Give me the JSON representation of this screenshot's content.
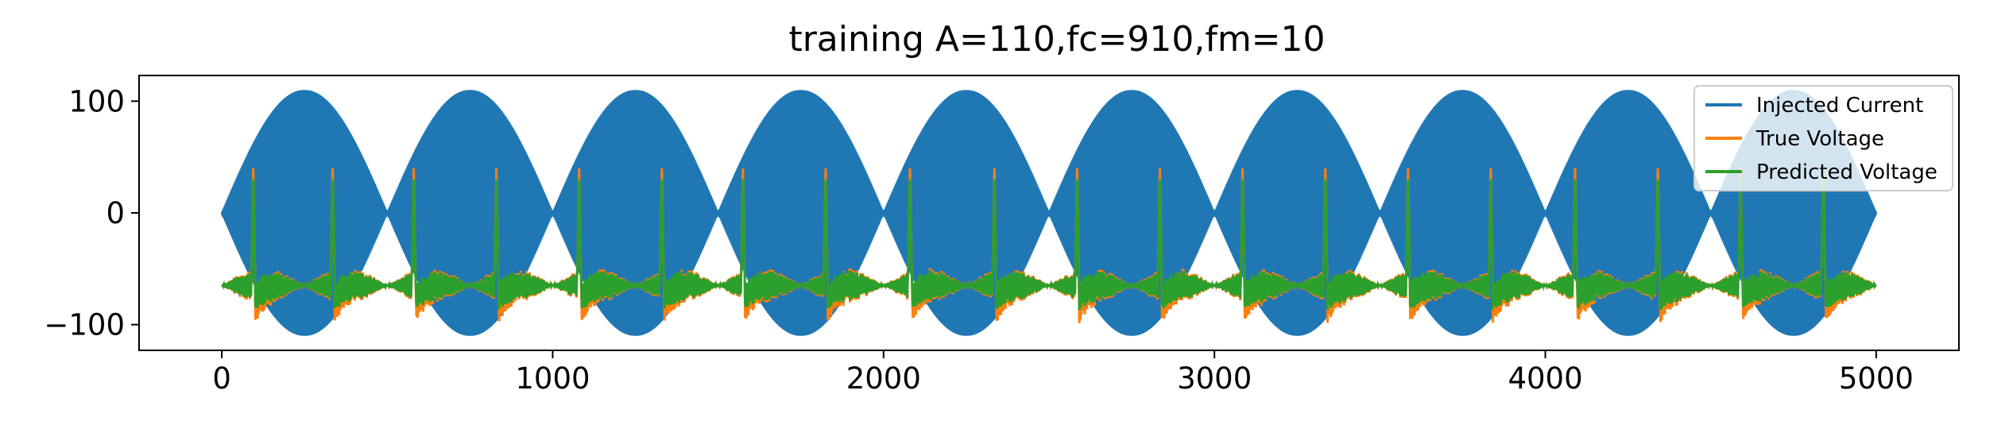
{
  "chart_data": {
    "type": "line",
    "title": "training A=110,fc=910,fm=10",
    "xlabel": "",
    "ylabel": "",
    "xlim": [
      -250,
      5250
    ],
    "ylim": [
      -123,
      123
    ],
    "xticks": [
      0,
      1000,
      2000,
      3000,
      4000,
      5000
    ],
    "xtick_labels": [
      "0",
      "1000",
      "2000",
      "3000",
      "4000",
      "5000"
    ],
    "yticks": [
      100,
      0,
      -100
    ],
    "ytick_labels": [
      "100",
      "0",
      "−100"
    ],
    "grid": false,
    "legend_position": "upper-right",
    "series": [
      {
        "name": "Injected Current",
        "color": "#1f77b4",
        "description_values": {
          "amplitude": 110,
          "x_range": [
            0,
            5000
          ],
          "envelope_half_period": 250
        }
      },
      {
        "name": "True Voltage",
        "color": "#ff7f0e",
        "description_values": {
          "baseline": -65,
          "spike_peak": 40,
          "trough": -90,
          "spike_x": [
            95,
            335,
            580,
            830,
            1080,
            1330,
            1575,
            1825,
            2080,
            2335,
            2585,
            2835,
            3085,
            3335,
            3585,
            3835,
            4090,
            4340,
            4590,
            4840
          ]
        }
      },
      {
        "name": "Predicted Voltage",
        "color": "#2ca02c",
        "description_values": {
          "baseline": -65,
          "spike_peak": 30,
          "spike_x": [
            95,
            335,
            580,
            830,
            1080,
            1330,
            1575,
            1825,
            2080,
            2335,
            2585,
            2835,
            3085,
            3335,
            3585,
            3835,
            4090,
            4340,
            4590,
            4840
          ]
        }
      }
    ]
  }
}
